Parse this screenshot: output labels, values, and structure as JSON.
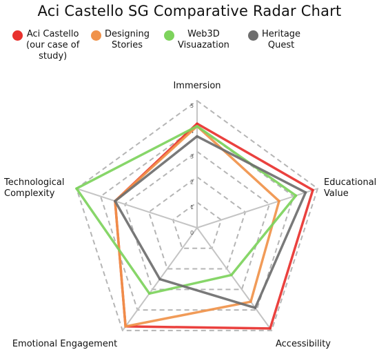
{
  "chart_data": {
    "type": "radar",
    "title": "Aci Castello SG Comparative Radar Chart",
    "axes": [
      "Immersion",
      "Educational Value",
      "Accessibility",
      "Emotional Engagement",
      "Technological Complexity"
    ],
    "axis_label_lines": [
      [
        "Immersion"
      ],
      [
        "Educational",
        "Value"
      ],
      [
        "Accessibility"
      ],
      [
        "Emotional Engagement"
      ],
      [
        "Technological",
        "Complexity"
      ]
    ],
    "rlim": [
      0,
      5
    ],
    "ticks": [
      "0",
      "1",
      "2",
      "3",
      "4",
      "5"
    ],
    "series": [
      {
        "name": "Aci Castello\n(our case of\nstudy)",
        "color": "#e8312e",
        "values": [
          4.1,
          4.8,
          4.9,
          4.8,
          3.4
        ]
      },
      {
        "name": "Designing\nStories",
        "color": "#f0924a",
        "values": [
          4.0,
          3.4,
          3.6,
          4.8,
          3.4
        ]
      },
      {
        "name": "Web3D\nVisuazation",
        "color": "#7dd35c",
        "values": [
          4.0,
          4.1,
          2.3,
          3.2,
          5.0
        ]
      },
      {
        "name": "Heritage\nQuest",
        "color": "#6e6e6e",
        "values": [
          3.6,
          4.5,
          3.9,
          2.5,
          3.4
        ]
      }
    ]
  }
}
